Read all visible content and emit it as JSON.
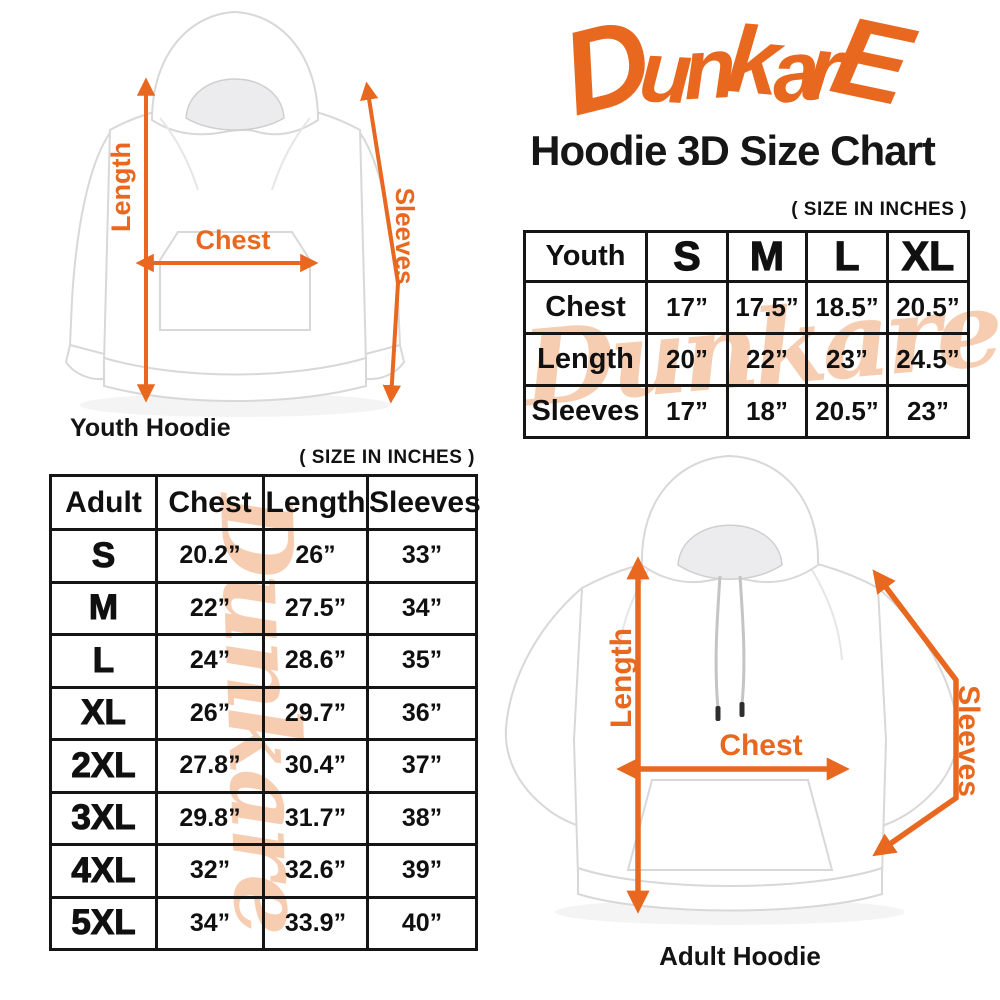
{
  "brand": {
    "logo": "DunkarE",
    "title": "Hoodie 3D Size Chart",
    "watermark": "Dunkare"
  },
  "colors": {
    "accent": "#E8681F",
    "watermark": "#F7CDB2",
    "table_border": "#151515"
  },
  "size_note": "( SIZE IN INCHES )",
  "youth": {
    "caption": "Youth Hoodie",
    "labels": {
      "length": "Length",
      "chest": "Chest",
      "sleeves": "Sleeves"
    },
    "table": {
      "header": [
        "Youth",
        "S",
        "M",
        "L",
        "XL"
      ],
      "rows": [
        [
          "Chest",
          "17”",
          "17.5”",
          "18.5”",
          "20.5”"
        ],
        [
          "Length",
          "20”",
          "22”",
          "23”",
          "24.5”"
        ],
        [
          "Sleeves",
          "17”",
          "18”",
          "20.5”",
          "23”"
        ]
      ]
    }
  },
  "adult": {
    "caption": "Adult Hoodie",
    "labels": {
      "length": "Length",
      "chest": "Chest",
      "sleeves": "Sleeves"
    },
    "table": {
      "header": [
        "Adult",
        "Chest",
        "Length",
        "Sleeves"
      ],
      "rows": [
        [
          "S",
          "20.2”",
          "26”",
          "33”"
        ],
        [
          "M",
          "22”",
          "27.5”",
          "34”"
        ],
        [
          "L",
          "24”",
          "28.6”",
          "35”"
        ],
        [
          "XL",
          "26”",
          "29.7”",
          "36”"
        ],
        [
          "2XL",
          "27.8”",
          "30.4”",
          "37”"
        ],
        [
          "3XL",
          "29.8”",
          "31.7”",
          "38”"
        ],
        [
          "4XL",
          "32”",
          "32.6”",
          "39”"
        ],
        [
          "5XL",
          "34”",
          "33.9”",
          "40”"
        ]
      ]
    }
  }
}
